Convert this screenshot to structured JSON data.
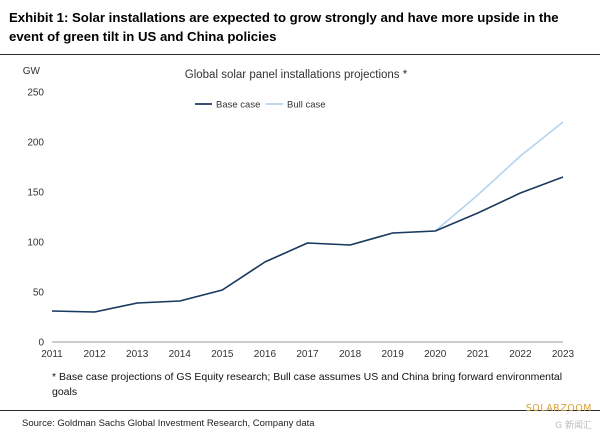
{
  "header": {
    "title": "Exhibit 1: Solar installations are expected to grow strongly and have more upside in the event of green tilt in US and China policies"
  },
  "footnote": "* Base  case projections of  GS Equity research; Bull case assumes US and China bring forward environmental goals",
  "source": "Source: Goldman Sachs Global Investment Research, Company data",
  "watermark": {
    "brand": "SOLARZOOM",
    "tag": "G 新闻汇"
  },
  "colors": {
    "base": "#1c3a5e",
    "bull": "#b4d3ee",
    "axis": "#9a9a9a",
    "text": "#333333"
  },
  "chart_data": {
    "type": "line",
    "title": "Global solar panel installations projections *",
    "ylabel": "GW",
    "xlabel": "",
    "ylim": [
      0,
      250
    ],
    "yticks": [
      0,
      50,
      100,
      150,
      200,
      250
    ],
    "grid": false,
    "legend_position": "top",
    "x": [
      "2011",
      "2012",
      "2013",
      "2014",
      "2015",
      "2016",
      "2017",
      "2018",
      "2019",
      "2020",
      "2021",
      "2022",
      "2023"
    ],
    "series": [
      {
        "name": "Base case",
        "color": "#1c3a5e",
        "values": [
          31,
          30,
          39,
          41,
          52,
          80,
          99,
          97,
          109,
          111,
          129,
          149,
          165
        ]
      },
      {
        "name": "Bull case",
        "color": "#b4d3ee",
        "values": [
          31,
          30,
          39,
          41,
          52,
          80,
          99,
          97,
          109,
          111,
          147,
          186,
          220
        ]
      }
    ]
  }
}
